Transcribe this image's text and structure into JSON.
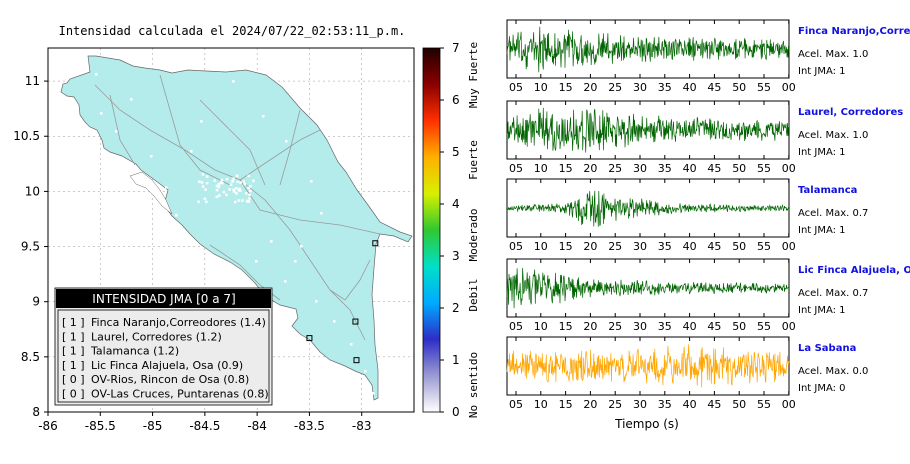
{
  "chart_data": [
    {
      "type": "map",
      "title": "Intensidad calculada el 2024/07/22_02:53:11_p.m.",
      "x_ticks": [
        "-86",
        "-85.5",
        "-85",
        "-84.5",
        "-84",
        "-83.5",
        "-83"
      ],
      "y_ticks": [
        "8",
        "8.5",
        "9",
        "9.5",
        "10",
        "10.5",
        "11"
      ],
      "xlim": [
        -86,
        -82.5
      ],
      "ylim": [
        8,
        11.3
      ],
      "grid": "on",
      "land_color": "#b4ecec",
      "colorbar": {
        "ticks": [
          "0",
          "1",
          "2",
          "3",
          "4",
          "5",
          "6",
          "7"
        ],
        "range": [
          0,
          7
        ],
        "category_labels": [
          "No sentido",
          "Debil",
          "Moderado",
          "Fuerte",
          "Muy Fuerte"
        ],
        "colors": [
          "#ffffff",
          "#9a9ad2",
          "#2d2dc8",
          "#00aaff",
          "#00e0c8",
          "#30c830",
          "#d8f000",
          "#ffb000",
          "#ff3000",
          "#8b0000",
          "#200000"
        ]
      },
      "legend": {
        "title": "INTENSIDAD JMA [0 a 7]",
        "entries": [
          {
            "value": "[ 1 ]",
            "label": "Finca Naranjo,Correodores (1.4)"
          },
          {
            "value": "[ 1 ]",
            "label": "Laurel, Corredores (1.2)"
          },
          {
            "value": "[ 1 ]",
            "label": "Talamanca (1.2)"
          },
          {
            "value": "[ 1 ]",
            "label": "Lic Finca Alajuela, Osa (0.9)"
          },
          {
            "value": "[ 0 ]",
            "label": "OV-Rios, Rincon de Osa (0.8)"
          },
          {
            "value": "[ 0 ]",
            "label": "OV-Las Cruces, Puntarenas (0.8)"
          }
        ]
      },
      "stations": [
        {
          "lon": -82.87,
          "lat": 9.53
        },
        {
          "lon": -83.06,
          "lat": 8.82
        },
        {
          "lon": -83.5,
          "lat": 8.67
        },
        {
          "lon": -83.05,
          "lat": 8.47
        }
      ]
    },
    {
      "type": "line",
      "xlabel": "Tiempo (s)",
      "x_ticks": [
        "05",
        "10",
        "15",
        "20",
        "25",
        "30",
        "35",
        "40",
        "45",
        "50",
        "55",
        "00"
      ],
      "series": [
        {
          "name": "Finca Naranjo,Correodores",
          "accel_label": "Acel. Max. 1.0",
          "int_label": "Int JMA: 1",
          "color": "#006400",
          "envelope": [
            [
              0,
              0.5
            ],
            [
              0.1,
              1.0
            ],
            [
              0.2,
              0.8
            ],
            [
              0.4,
              0.6
            ],
            [
              0.6,
              0.5
            ],
            [
              1,
              0.4
            ]
          ]
        },
        {
          "name": "Laurel, Corredores",
          "accel_label": "Acel. Max. 1.0",
          "int_label": "Int JMA: 1",
          "color": "#006400",
          "envelope": [
            [
              0,
              0.5
            ],
            [
              0.15,
              1.0
            ],
            [
              0.3,
              0.9
            ],
            [
              0.5,
              0.6
            ],
            [
              0.7,
              0.5
            ],
            [
              1,
              0.4
            ]
          ]
        },
        {
          "name": "Talamanca",
          "accel_label": "Acel. Max. 0.7",
          "int_label": "Int JMA: 1",
          "color": "#006400",
          "envelope": [
            [
              0,
              0.1
            ],
            [
              0.2,
              0.2
            ],
            [
              0.3,
              1.0
            ],
            [
              0.4,
              0.5
            ],
            [
              0.6,
              0.2
            ],
            [
              1,
              0.12
            ]
          ]
        },
        {
          "name": "Lic Finca Alajuela, Osa",
          "accel_label": "Acel. Max. 0.7",
          "int_label": "Int JMA: 1",
          "color": "#006400",
          "envelope": [
            [
              0,
              0.9
            ],
            [
              0.15,
              0.7
            ],
            [
              0.3,
              0.4
            ],
            [
              0.6,
              0.25
            ],
            [
              1,
              0.2
            ]
          ]
        },
        {
          "name": "La Sabana",
          "accel_label": "Acel. Max. 0.0",
          "int_label": "Int JMA: 0",
          "color": "#ffa500",
          "envelope": [
            [
              0,
              0.6
            ],
            [
              0.5,
              0.7
            ],
            [
              0.65,
              0.9
            ],
            [
              1,
              0.6
            ]
          ]
        }
      ]
    }
  ]
}
